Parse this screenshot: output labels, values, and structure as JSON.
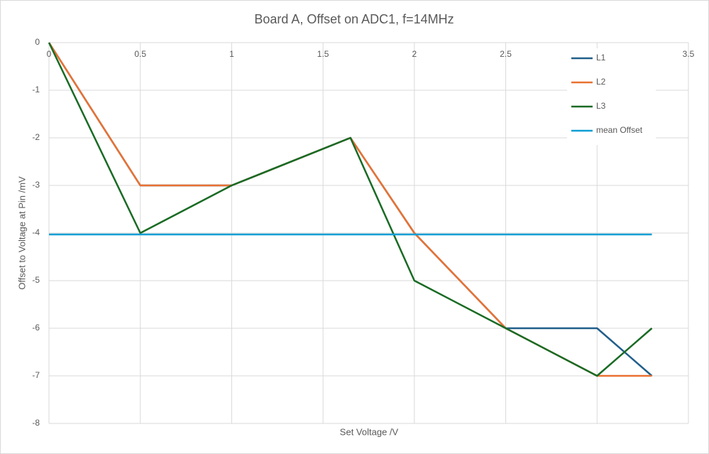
{
  "chart_data": {
    "type": "line",
    "title": "Board A, Offset on ADC1, f=14MHz",
    "x_label": "Set Voltage /V",
    "y_label": "Offset to Voltage at Pin /mV",
    "x": [
      0,
      0.5,
      1,
      1.65,
      2,
      2.5,
      3,
      3.3
    ],
    "series": [
      {
        "name": "L1",
        "color": "#215f8a",
        "values": [
          0,
          -3,
          -3,
          -2,
          -4,
          -6,
          -6,
          -7
        ]
      },
      {
        "name": "L2",
        "color": "#e97132",
        "values": [
          0,
          -3,
          -3,
          -2,
          -4,
          -6,
          -7,
          -7
        ]
      },
      {
        "name": "L3",
        "color": "#196b24",
        "values": [
          0,
          -4,
          -3,
          -2,
          -5,
          -6,
          -7,
          -6
        ]
      },
      {
        "name": "mean Offset",
        "color": "#0f9ed5",
        "x": [
          0,
          3.3
        ],
        "values": [
          -4.03,
          -4.03
        ]
      }
    ],
    "xlim": [
      0,
      3.5
    ],
    "xticks": [
      0,
      0.5,
      1,
      1.5,
      2,
      2.5,
      3,
      3.5
    ],
    "ylim": [
      -8,
      0
    ],
    "yticks": [
      0,
      -1,
      -2,
      -3,
      -4,
      -5,
      -6,
      -7,
      -8
    ],
    "grid": true,
    "legend": "top-right"
  }
}
